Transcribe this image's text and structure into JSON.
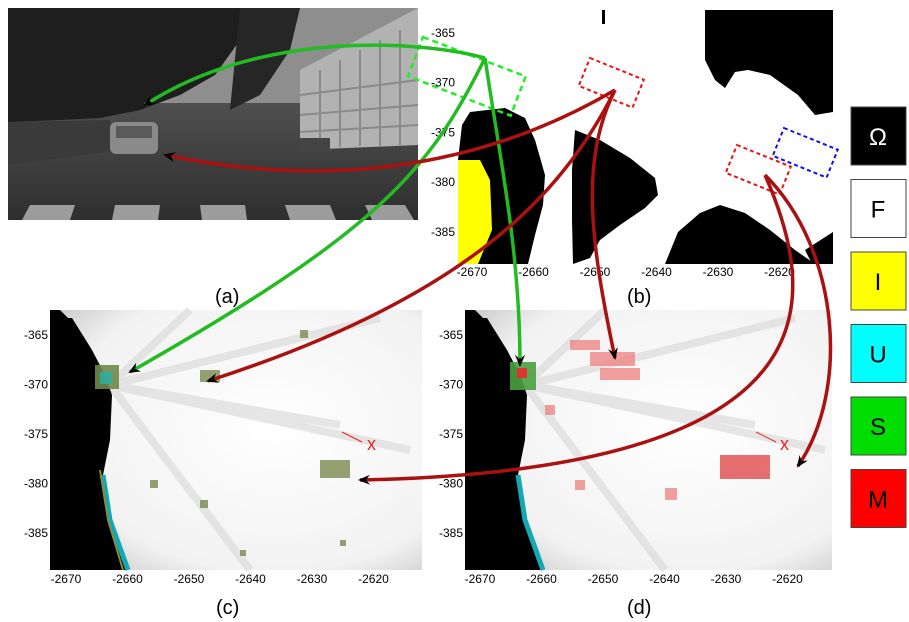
{
  "panels": {
    "a": "(a)",
    "b": "(b)",
    "c": "(c)",
    "d": "(d)"
  },
  "axes": {
    "b": {
      "yticks": [
        "-365",
        "-370",
        "-375",
        "-380",
        "-385"
      ],
      "xticks": [
        "-2670",
        "-2660",
        "-2650",
        "-2640",
        "-2630",
        "-2620"
      ]
    },
    "c": {
      "yticks": [
        "-365",
        "-370",
        "-375",
        "-380",
        "-385"
      ],
      "xticks": [
        "-2670",
        "-2660",
        "-2650",
        "-2640",
        "-2630",
        "-2620"
      ]
    },
    "d": {
      "yticks": [
        "-365",
        "-370",
        "-375",
        "-380",
        "-385"
      ],
      "xticks": [
        "-2670",
        "-2660",
        "-2650",
        "-2640",
        "-2630",
        "-2620"
      ]
    }
  },
  "marker": {
    "c": "x",
    "d": "x"
  },
  "legend": [
    {
      "label": "Ω",
      "color": "#000000",
      "text_color": "#ffffff"
    },
    {
      "label": "F",
      "color": "#ffffff",
      "text_color": "#000000"
    },
    {
      "label": "I",
      "color": "#ffff00",
      "text_color": "#000000"
    },
    {
      "label": "U",
      "color": "#00ffff",
      "text_color": "#000000"
    },
    {
      "label": "S",
      "color": "#00dd00",
      "text_color": "#000000"
    },
    {
      "label": "M",
      "color": "#ff0000",
      "text_color": "#000000"
    }
  ],
  "colors": {
    "green_arrow": "#22bb22",
    "red_arrow": "#aa1111",
    "box_green": "#22ee22",
    "box_red": "#ee1111",
    "box_blue": "#1111ee"
  }
}
